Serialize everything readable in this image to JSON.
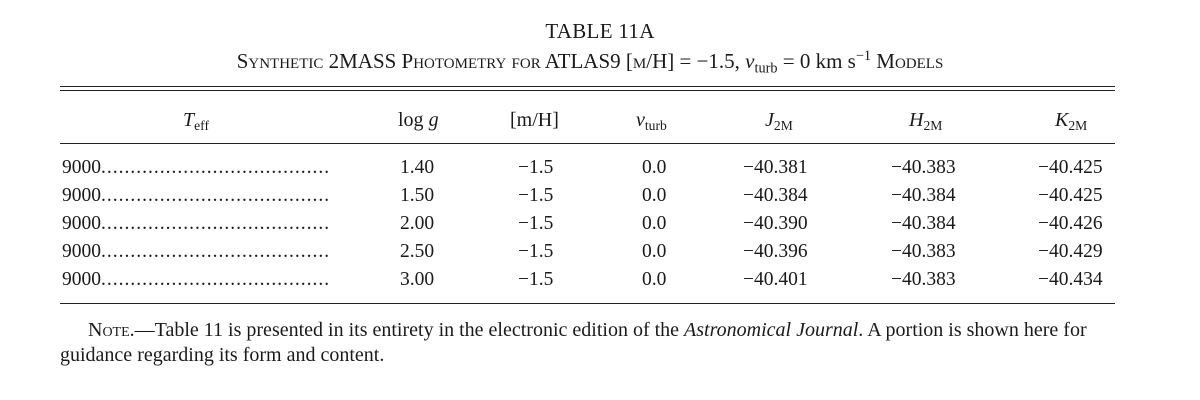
{
  "table": {
    "number": "TABLE 11A",
    "caption": {
      "part1": "Synthetic 2MASS Photometry for ATLAS9 [m/H] = −1.5, ",
      "v": "v",
      "v_sub": "turb",
      "part2": " = 0 km s",
      "sup": "−1",
      "part3": " Models"
    },
    "headers": {
      "teff": "T",
      "teff_sub": "eff",
      "logg_log": "log ",
      "logg_g": "g",
      "mh": "[m/H]",
      "vturb_v": "v",
      "vturb_sub": "turb",
      "j": "J",
      "j_sub": "2M",
      "h": "H",
      "h_sub": "2M",
      "k": "K",
      "k_sub": "2M"
    },
    "rows": [
      {
        "teff": "9000",
        "logg": "1.40",
        "mh": "−1.5",
        "vturb": "0.0",
        "j": "−40.381",
        "h": "−40.383",
        "k": "−40.425"
      },
      {
        "teff": "9000",
        "logg": "1.50",
        "mh": "−1.5",
        "vturb": "0.0",
        "j": "−40.384",
        "h": "−40.384",
        "k": "−40.425"
      },
      {
        "teff": "9000",
        "logg": "2.00",
        "mh": "−1.5",
        "vturb": "0.0",
        "j": "−40.390",
        "h": "−40.384",
        "k": "−40.426"
      },
      {
        "teff": "9000",
        "logg": "2.50",
        "mh": "−1.5",
        "vturb": "0.0",
        "j": "−40.396",
        "h": "−40.383",
        "k": "−40.429"
      },
      {
        "teff": "9000",
        "logg": "3.00",
        "mh": "−1.5",
        "vturb": "0.0",
        "j": "−40.401",
        "h": "−40.383",
        "k": "−40.434"
      }
    ],
    "note": {
      "label": "Note.",
      "dash": "—",
      "text1": "Table 11 is presented in its entirety in the electronic edition of the ",
      "journal": "Astronomical Journal",
      "text2": ". A portion is shown here for guidance regarding its form and content."
    }
  }
}
